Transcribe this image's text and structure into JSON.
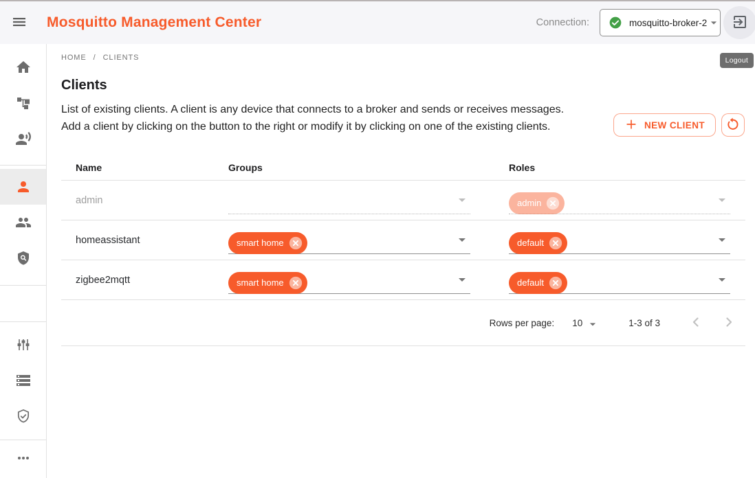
{
  "app": {
    "title": "Mosquitto Management Center"
  },
  "header": {
    "connection_label": "Connection:",
    "connection": {
      "value": "mosquitto-broker-2",
      "status_icon": "check-circle-icon",
      "status_color": "#43A047"
    },
    "logout_tooltip": "Logout"
  },
  "sidebar": {
    "sections": [
      {
        "cls": "pt8 pb12",
        "items": [
          {
            "name": "home",
            "icon": "home-icon",
            "selected": false
          },
          {
            "name": "topology",
            "icon": "topology-icon",
            "selected": false
          },
          {
            "name": "connected-clients",
            "icon": "record-voice-icon",
            "selected": false
          }
        ]
      },
      {
        "cls": "pt5 pb13",
        "items": [
          {
            "name": "clients",
            "icon": "person-icon",
            "selected": true
          },
          {
            "name": "groups",
            "icon": "people-icon",
            "selected": false
          },
          {
            "name": "roles",
            "icon": "shield-search-icon",
            "selected": false
          }
        ]
      },
      {
        "cls": "h52",
        "items": []
      },
      {
        "cls": "pt7 pb8",
        "items": [
          {
            "name": "settings",
            "icon": "sliders-icon",
            "selected": false
          },
          {
            "name": "streams",
            "icon": "storage-list-icon",
            "selected": false
          },
          {
            "name": "security",
            "icon": "shield-check-icon",
            "selected": false
          }
        ]
      },
      {
        "cls": "",
        "items": [
          {
            "name": "more",
            "icon": "more-horiz-icon",
            "selected": false
          }
        ]
      }
    ]
  },
  "breadcrumb": {
    "home": "HOME",
    "separator": "/",
    "current": "CLIENTS"
  },
  "page": {
    "title": "Clients",
    "description": "List of existing clients. A client is any device that connects to a broker and sends or receives messages. Add a client by clicking on the button to the right or modify it by clicking on one of the existing clients."
  },
  "actions": {
    "new_client_label": "NEW CLIENT",
    "refresh_icon": "refresh-icon",
    "plus_icon": "plus-icon"
  },
  "table": {
    "columns": [
      "Name",
      "Groups",
      "Roles"
    ],
    "rows": [
      {
        "name": "admin",
        "groups": [],
        "roles": [
          "admin"
        ],
        "disabled": true
      },
      {
        "name": "homeassistant",
        "groups": [
          "smart home"
        ],
        "roles": [
          "default"
        ],
        "disabled": false
      },
      {
        "name": "zigbee2mqtt",
        "groups": [
          "smart home"
        ],
        "roles": [
          "default"
        ],
        "disabled": false
      }
    ]
  },
  "pagination": {
    "rows_per_page_label": "Rows per page:",
    "rows_per_page_value": "10",
    "range_label": "1-3 of 3"
  },
  "colors": {
    "accent": "#F75B2B",
    "green": "#43A047"
  }
}
